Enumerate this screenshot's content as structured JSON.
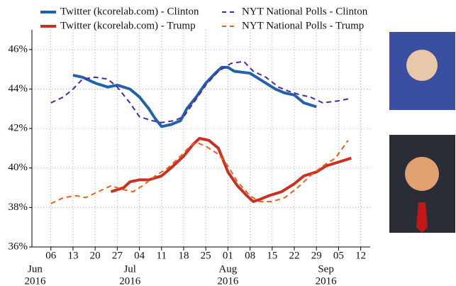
{
  "chart_data": {
    "type": "line",
    "xlim": [
      "2016-05-31",
      "2016-09-15"
    ],
    "ylim": [
      36,
      47
    ],
    "grid": true,
    "yticks": [
      {
        "value": 36,
        "label": "36%"
      },
      {
        "value": 38,
        "label": "38%"
      },
      {
        "value": 40,
        "label": "40%"
      },
      {
        "value": 42,
        "label": "42%"
      },
      {
        "value": 44,
        "label": "44%"
      },
      {
        "value": 46,
        "label": "46%"
      }
    ],
    "xticks": [
      {
        "value": "2016-06-06",
        "label": "06"
      },
      {
        "value": "2016-06-13",
        "label": "13"
      },
      {
        "value": "2016-06-20",
        "label": "20"
      },
      {
        "value": "2016-06-27",
        "label": "27"
      },
      {
        "value": "2016-07-04",
        "label": "04"
      },
      {
        "value": "2016-07-11",
        "label": "11"
      },
      {
        "value": "2016-07-18",
        "label": "18"
      },
      {
        "value": "2016-07-25",
        "label": "25"
      },
      {
        "value": "2016-08-01",
        "label": "01"
      },
      {
        "value": "2016-08-08",
        "label": "08"
      },
      {
        "value": "2016-08-15",
        "label": "15"
      },
      {
        "value": "2016-08-22",
        "label": "22"
      },
      {
        "value": "2016-08-29",
        "label": "29"
      },
      {
        "value": "2016-09-05",
        "label": "05"
      },
      {
        "value": "2016-09-12",
        "label": "12"
      }
    ],
    "month_labels": [
      {
        "value": "2016-06-01",
        "month": "Jun",
        "year": "2016"
      },
      {
        "value": "2016-07-01",
        "month": "Jul",
        "year": "2016"
      },
      {
        "value": "2016-08-01",
        "month": "Aug",
        "year": "2016"
      },
      {
        "value": "2016-09-01",
        "month": "Sep",
        "year": "2016"
      }
    ],
    "series": [
      {
        "name": "Twitter (kcorelab.com) - Clinton",
        "color": "#2262a8",
        "style": "solid",
        "x": [
          "2016-06-13",
          "2016-06-16",
          "2016-06-20",
          "2016-06-24",
          "2016-06-27",
          "2016-07-01",
          "2016-07-04",
          "2016-07-07",
          "2016-07-09",
          "2016-07-11",
          "2016-07-14",
          "2016-07-17",
          "2016-07-19",
          "2016-07-22",
          "2016-07-25",
          "2016-07-28",
          "2016-07-30",
          "2016-08-01",
          "2016-08-03",
          "2016-08-08",
          "2016-08-12",
          "2016-08-16",
          "2016-08-19",
          "2016-08-22",
          "2016-08-25",
          "2016-08-29"
        ],
        "values": [
          44.7,
          44.6,
          44.3,
          44.1,
          44.2,
          44.0,
          43.6,
          43.0,
          42.5,
          42.1,
          42.2,
          42.4,
          43.0,
          43.6,
          44.3,
          44.8,
          45.1,
          45.1,
          44.9,
          44.8,
          44.4,
          44.0,
          43.8,
          43.7,
          43.3,
          43.1
        ]
      },
      {
        "name": "Twitter (kcorelab.com) - Trump",
        "color": "#c83222",
        "style": "solid",
        "x": [
          "2016-06-25",
          "2016-06-29",
          "2016-07-01",
          "2016-07-04",
          "2016-07-07",
          "2016-07-11",
          "2016-07-14",
          "2016-07-18",
          "2016-07-21",
          "2016-07-23",
          "2016-07-26",
          "2016-07-29",
          "2016-08-01",
          "2016-08-04",
          "2016-08-07",
          "2016-08-09",
          "2016-08-11",
          "2016-08-14",
          "2016-08-18",
          "2016-08-22",
          "2016-08-25",
          "2016-08-29",
          "2016-09-01",
          "2016-09-05",
          "2016-09-09"
        ],
        "values": [
          38.8,
          39.0,
          39.3,
          39.4,
          39.4,
          39.6,
          40.0,
          40.6,
          41.2,
          41.5,
          41.4,
          41.0,
          39.8,
          39.1,
          38.6,
          38.3,
          38.4,
          38.6,
          38.8,
          39.2,
          39.6,
          39.8,
          40.1,
          40.3,
          40.5
        ]
      },
      {
        "name": "NYT National Polls - Clinton",
        "color": "#5424a6",
        "style": "dashed",
        "x": [
          "2016-06-06",
          "2016-06-10",
          "2016-06-13",
          "2016-06-16",
          "2016-06-20",
          "2016-06-24",
          "2016-06-27",
          "2016-07-01",
          "2016-07-04",
          "2016-07-08",
          "2016-07-11",
          "2016-07-15",
          "2016-07-18",
          "2016-07-22",
          "2016-07-25",
          "2016-07-29",
          "2016-08-02",
          "2016-08-06",
          "2016-08-09",
          "2016-08-13",
          "2016-08-17",
          "2016-08-20",
          "2016-08-24",
          "2016-08-27",
          "2016-08-31",
          "2016-09-05",
          "2016-09-08"
        ],
        "values": [
          43.3,
          43.6,
          44.0,
          44.5,
          44.6,
          44.5,
          44.1,
          43.3,
          42.6,
          42.4,
          42.3,
          42.4,
          42.6,
          43.5,
          44.2,
          44.9,
          45.3,
          45.4,
          44.9,
          44.6,
          44.1,
          43.9,
          43.7,
          43.6,
          43.3,
          43.4,
          43.5
        ]
      },
      {
        "name": "NYT National Polls - Trump",
        "color": "#e8621e",
        "style": "dashed",
        "x": [
          "2016-06-06",
          "2016-06-10",
          "2016-06-14",
          "2016-06-17",
          "2016-06-21",
          "2016-06-25",
          "2016-06-29",
          "2016-07-02",
          "2016-07-05",
          "2016-07-09",
          "2016-07-13",
          "2016-07-17",
          "2016-07-20",
          "2016-07-22",
          "2016-07-25",
          "2016-07-29",
          "2016-08-01",
          "2016-08-04",
          "2016-08-08",
          "2016-08-11",
          "2016-08-15",
          "2016-08-19",
          "2016-08-23",
          "2016-08-27",
          "2016-08-31",
          "2016-09-04",
          "2016-09-08"
        ],
        "values": [
          38.2,
          38.5,
          38.6,
          38.5,
          38.8,
          39.1,
          38.9,
          38.8,
          39.1,
          39.6,
          40.0,
          40.6,
          41.1,
          41.3,
          41.1,
          40.7,
          40.1,
          39.3,
          38.6,
          38.3,
          38.3,
          38.5,
          39.0,
          39.6,
          40.1,
          40.5,
          41.4
        ]
      }
    ]
  }
}
